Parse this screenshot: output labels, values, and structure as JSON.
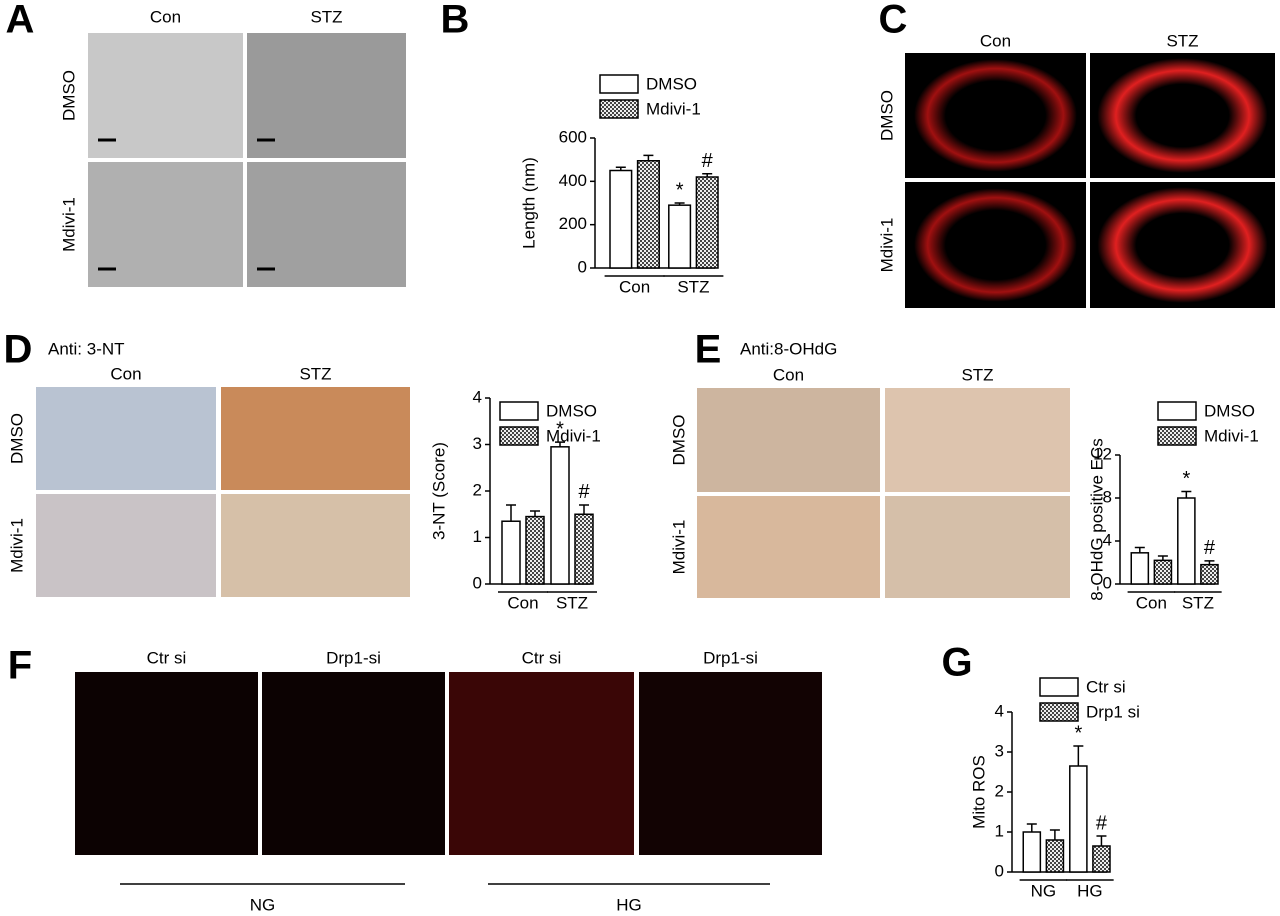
{
  "chart_data": [
    {
      "type": "bar",
      "panel": "B",
      "y_label": "Length (nm)",
      "categories": [
        "Con",
        "STZ"
      ],
      "series": [
        {
          "name": "DMSO",
          "color": "#ffffff",
          "values": [
            450,
            290
          ],
          "errors": [
            15,
            10
          ],
          "markers": [
            null,
            "*"
          ]
        },
        {
          "name": "Mdivi-1",
          "color": "#555555",
          "pattern": "checkered",
          "values": [
            495,
            420
          ],
          "errors": [
            25,
            15
          ],
          "markers": [
            null,
            "#"
          ]
        }
      ],
      "ylim": [
        0,
        600
      ],
      "yticks": [
        0,
        200,
        400,
        600
      ]
    },
    {
      "type": "bar",
      "y_label": "3-NT (Score)",
      "categories": [
        "Con",
        "STZ"
      ],
      "series": [
        {
          "name": "DMSO",
          "color": "#ffffff",
          "values": [
            1.35,
            2.95
          ],
          "errors": [
            0.35,
            0.1
          ],
          "markers": [
            null,
            "*"
          ]
        },
        {
          "name": "Mdivi-1",
          "color": "#555555",
          "pattern": "checkered",
          "values": [
            1.45,
            1.5
          ],
          "errors": [
            0.12,
            0.2
          ],
          "markers": [
            null,
            "#"
          ]
        }
      ],
      "ylim": [
        0,
        4
      ],
      "yticks": [
        0,
        1,
        2,
        3,
        4
      ]
    },
    {
      "type": "bar",
      "y_label": "8-OHdG positive ECs",
      "categories": [
        "Con",
        "STZ"
      ],
      "series": [
        {
          "name": "DMSO",
          "color": "#ffffff",
          "values": [
            2.9,
            8.0
          ],
          "errors": [
            0.5,
            0.6
          ],
          "markers": [
            null,
            "*"
          ]
        },
        {
          "name": "Mdivi-1",
          "color": "#555555",
          "pattern": "checkered",
          "values": [
            2.2,
            1.8
          ],
          "errors": [
            0.4,
            0.35
          ],
          "markers": [
            null,
            "#"
          ]
        }
      ],
      "ylim": [
        0,
        12
      ],
      "yticks": [
        0,
        4,
        8,
        12
      ]
    },
    {
      "type": "bar",
      "panel": "G",
      "y_label": "Mito ROS",
      "categories": [
        "NG",
        "HG"
      ],
      "series": [
        {
          "name": "Ctr si",
          "color": "#ffffff",
          "values": [
            1.0,
            2.65
          ],
          "errors": [
            0.2,
            0.5
          ],
          "markers": [
            null,
            "*"
          ]
        },
        {
          "name": "Drp1 si",
          "color": "#555555",
          "pattern": "checkered",
          "values": [
            0.8,
            0.65
          ],
          "errors": [
            0.25,
            0.25
          ],
          "markers": [
            null,
            "#"
          ]
        }
      ],
      "ylim": [
        0,
        4
      ],
      "yticks": [
        0,
        1,
        2,
        3,
        4
      ]
    }
  ],
  "image_panels": [
    {
      "panel": "A",
      "columns": [
        "Con",
        "STZ"
      ],
      "rows": [
        "DMSO",
        "Mdivi-1"
      ]
    },
    {
      "panel": "C",
      "columns": [
        "Con",
        "STZ"
      ],
      "rows": [
        "DMSO",
        "Mdivi-1"
      ]
    },
    {
      "panel": "D",
      "stain": "Anti: 3-NT",
      "columns": [
        "Con",
        "STZ"
      ],
      "rows": [
        "DMSO",
        "Mdivi-1"
      ]
    },
    {
      "panel": "E",
      "stain": "Anti:8-OHdG",
      "columns": [
        "Con",
        "STZ"
      ],
      "rows": [
        "DMSO",
        "Mdivi-1"
      ]
    },
    {
      "panel": "F",
      "columns": [
        "Ctr si",
        "Drp1-si",
        "Ctr si",
        "Drp1-si"
      ],
      "groups": [
        "NG",
        "HG"
      ]
    }
  ]
}
